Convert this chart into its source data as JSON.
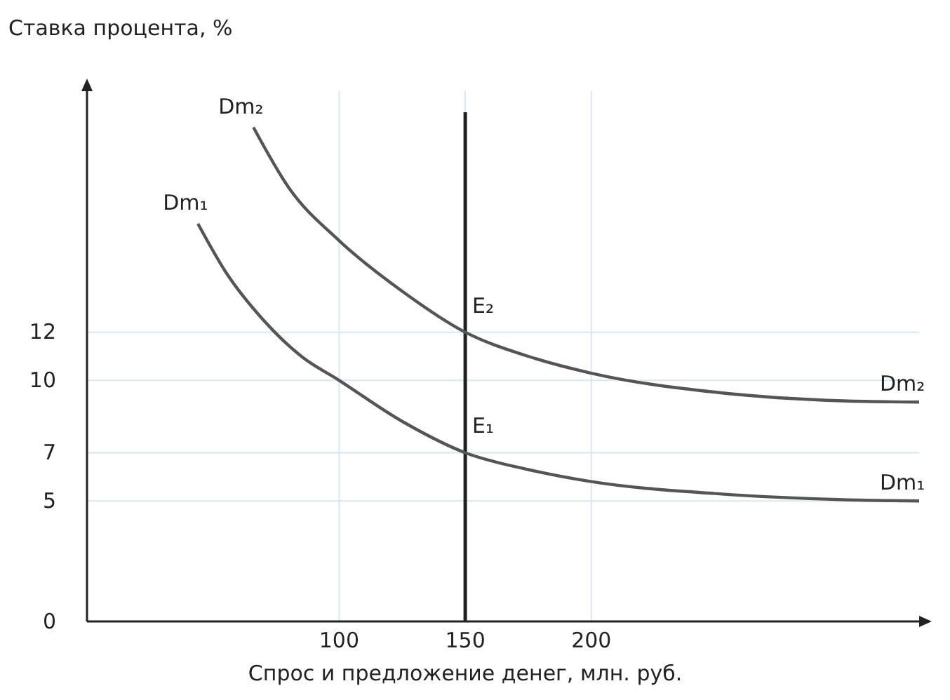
{
  "chart_data": {
    "type": "line",
    "ylabel": "Ставка процента, %",
    "xlabel": "Спрос и предложение денег, млн. руб.",
    "xlim": [
      0,
      330
    ],
    "ylim": [
      0,
      22
    ],
    "xticks": [
      100,
      150,
      200
    ],
    "yticks": [
      0,
      5,
      7,
      10,
      12
    ],
    "grid": true,
    "line_style": "solid",
    "marker": "none",
    "series": [
      {
        "name": "Dm₁",
        "color": "#555555",
        "x": [
          44,
          55,
          70,
          85,
          100,
          125,
          150,
          175,
          200,
          250,
          300,
          330
        ],
        "values": [
          16.5,
          14.5,
          12.5,
          11,
          10,
          8.3,
          7,
          6.3,
          5.8,
          5.3,
          5.05,
          5
        ]
      },
      {
        "name": "Dm₂",
        "color": "#555555",
        "x": [
          66,
          80,
          100,
          125,
          150,
          175,
          200,
          250,
          300,
          330
        ],
        "values": [
          20.5,
          18,
          15.8,
          13.7,
          12,
          11,
          10.3,
          9.5,
          9.15,
          9.1
        ]
      }
    ],
    "ref_lines": [
      {
        "axis": "x",
        "value": 150,
        "color": "#222222"
      }
    ],
    "annotations": [
      {
        "text": "E₁",
        "x": 150,
        "y": 7
      },
      {
        "text": "E₂",
        "x": 150,
        "y": 12
      }
    ]
  }
}
